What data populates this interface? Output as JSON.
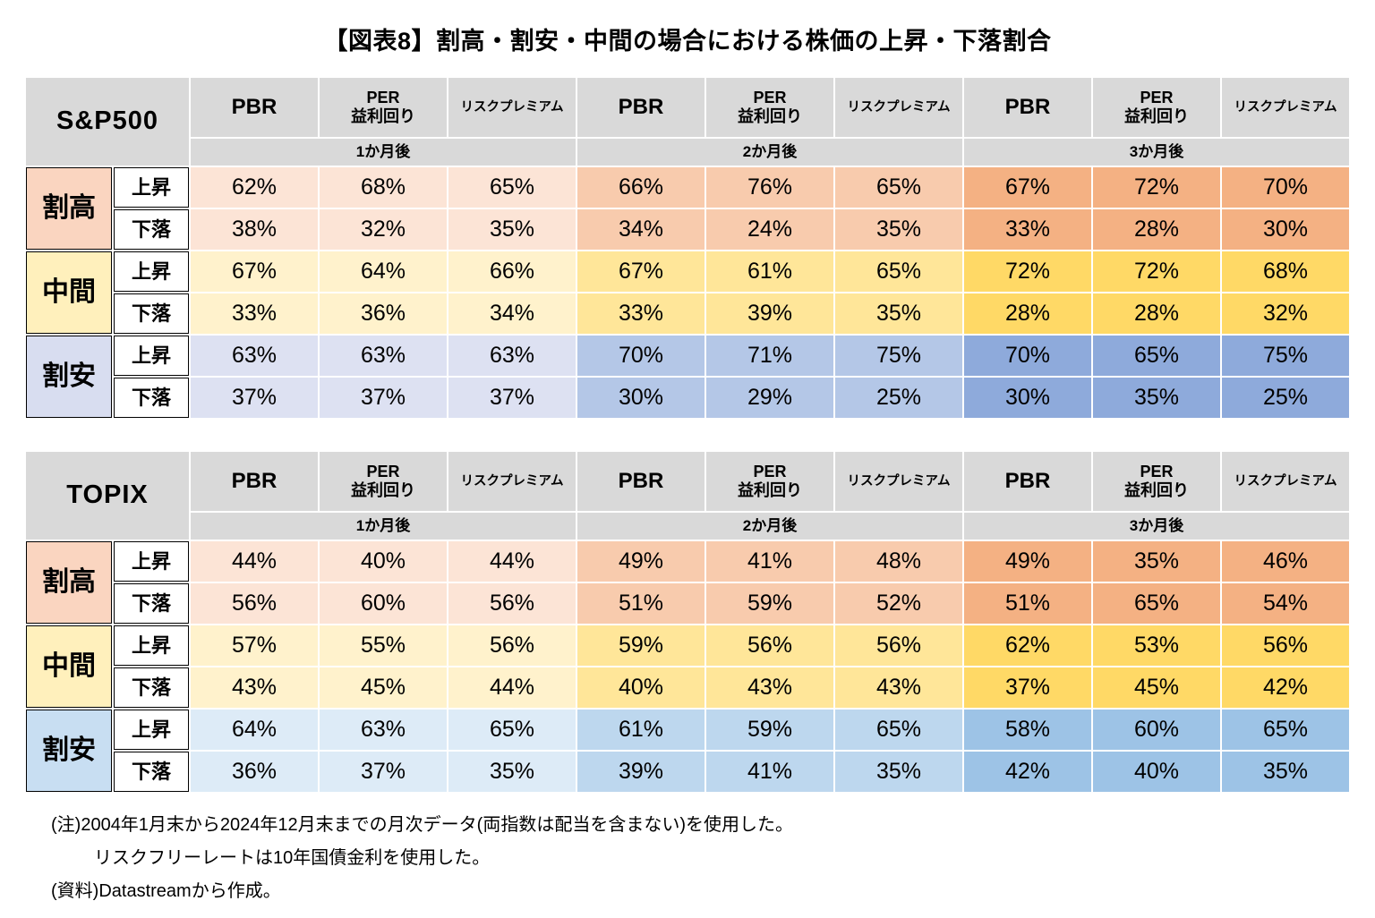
{
  "title": "【図表8】割高・割安・中間の場合における株価の上昇・下落割合",
  "periods": [
    "1か月後",
    "2か月後",
    "3か月後"
  ],
  "metrics": [
    "PBR",
    "PER\n益利回り",
    "リスクプレミアム"
  ],
  "groups": [
    "割高",
    "中間",
    "割安"
  ],
  "directions": [
    "上昇",
    "下落"
  ],
  "unit": "%",
  "notes": [
    "(注)2004年1月末から2024年12月末までの月次データ(両指数は配当を含まない)を使用した。",
    "リスクフリーレートは10年国債金利を使用した。",
    "(資料)Datastreamから作成。"
  ],
  "styles": {
    "header_bg": "#D9D9D9",
    "border_color": "#000000",
    "tables": [
      {
        "groups": [
          {
            "label_bg": "#FAD5C0",
            "period_bg": [
              "#FCE4D6",
              "#F8CBAD",
              "#F4B183"
            ]
          },
          {
            "label_bg": "#FFF0BC",
            "period_bg": [
              "#FFF2CC",
              "#FFE699",
              "#FFD966"
            ]
          },
          {
            "label_bg": "#D8DDF0",
            "period_bg": [
              "#DDE1F2",
              "#B4C7E7",
              "#8EAADB"
            ]
          }
        ]
      },
      {
        "groups": [
          {
            "label_bg": "#FAD5C0",
            "period_bg": [
              "#FCE4D6",
              "#F8CBAD",
              "#F4B183"
            ]
          },
          {
            "label_bg": "#FFF0BC",
            "period_bg": [
              "#FFF2CC",
              "#FFE699",
              "#FFD966"
            ]
          },
          {
            "label_bg": "#C8DEF2",
            "period_bg": [
              "#DDEBF7",
              "#BDD7EE",
              "#9DC3E6"
            ]
          }
        ]
      }
    ]
  },
  "chart_data": [
    {
      "type": "table",
      "title": "S&P500",
      "periods": [
        "1か月後",
        "2か月後",
        "3か月後"
      ],
      "metrics": [
        "PBR",
        "PER益利回り",
        "リスクプレミアム"
      ],
      "unit": "%",
      "rows": [
        {
          "group": "割高",
          "direction": "上昇",
          "values": [
            62,
            68,
            65,
            66,
            76,
            65,
            67,
            72,
            70
          ]
        },
        {
          "group": "割高",
          "direction": "下落",
          "values": [
            38,
            32,
            35,
            34,
            24,
            35,
            33,
            28,
            30
          ]
        },
        {
          "group": "中間",
          "direction": "上昇",
          "values": [
            67,
            64,
            66,
            67,
            61,
            65,
            72,
            72,
            68
          ]
        },
        {
          "group": "中間",
          "direction": "下落",
          "values": [
            33,
            36,
            34,
            33,
            39,
            35,
            28,
            28,
            32
          ]
        },
        {
          "group": "割安",
          "direction": "上昇",
          "values": [
            63,
            63,
            63,
            70,
            71,
            75,
            70,
            65,
            75
          ]
        },
        {
          "group": "割安",
          "direction": "下落",
          "values": [
            37,
            37,
            37,
            30,
            29,
            25,
            30,
            35,
            25
          ]
        }
      ]
    },
    {
      "type": "table",
      "title": "TOPIX",
      "periods": [
        "1か月後",
        "2か月後",
        "3か月後"
      ],
      "metrics": [
        "PBR",
        "PER益利回り",
        "リスクプレミアム"
      ],
      "unit": "%",
      "rows": [
        {
          "group": "割高",
          "direction": "上昇",
          "values": [
            44,
            40,
            44,
            49,
            41,
            48,
            49,
            35,
            46
          ]
        },
        {
          "group": "割高",
          "direction": "下落",
          "values": [
            56,
            60,
            56,
            51,
            59,
            52,
            51,
            65,
            54
          ]
        },
        {
          "group": "中間",
          "direction": "上昇",
          "values": [
            57,
            55,
            56,
            59,
            56,
            56,
            62,
            53,
            56
          ]
        },
        {
          "group": "中間",
          "direction": "下落",
          "values": [
            43,
            45,
            44,
            40,
            43,
            43,
            37,
            45,
            42
          ]
        },
        {
          "group": "割安",
          "direction": "上昇",
          "values": [
            64,
            63,
            65,
            61,
            59,
            65,
            58,
            60,
            65
          ]
        },
        {
          "group": "割安",
          "direction": "下落",
          "values": [
            36,
            37,
            35,
            39,
            41,
            35,
            42,
            40,
            35
          ]
        }
      ]
    }
  ]
}
